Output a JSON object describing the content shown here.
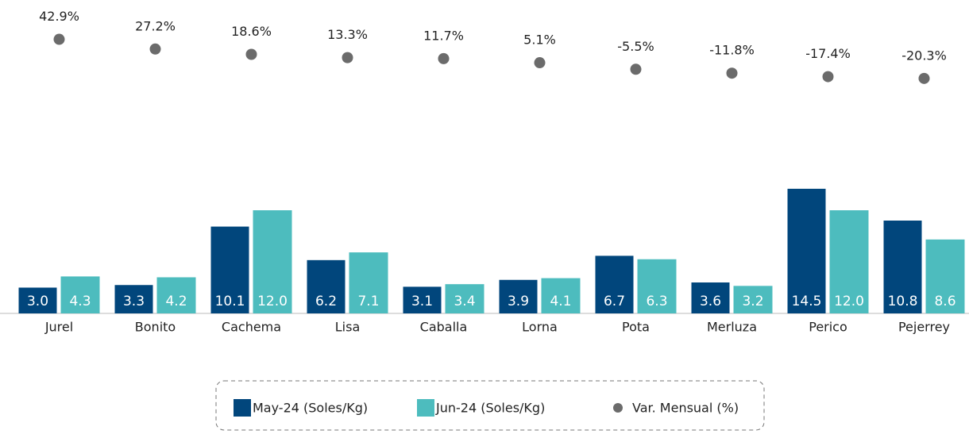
{
  "chart_data": {
    "type": "bar",
    "categories": [
      "Jurel",
      "Bonito",
      "Cachema",
      "Lisa",
      "Caballa",
      "Lorna",
      "Pota",
      "Merluza",
      "Perico",
      "Pejerrey"
    ],
    "series": [
      {
        "name": "May-24 (Soles/Kg)",
        "color": "#01467c",
        "values": [
          3.0,
          3.3,
          10.1,
          6.2,
          3.1,
          3.9,
          6.7,
          3.6,
          14.5,
          10.8
        ],
        "value_labels": [
          "3.0",
          "3.3",
          "10.1",
          "6.2",
          "3.1",
          "3.9",
          "6.7",
          "3.6",
          "14.5",
          "10.8"
        ]
      },
      {
        "name": "Jun-24 (Soles/Kg)",
        "color": "#4dbcbe",
        "values": [
          4.3,
          4.2,
          12.0,
          7.1,
          3.4,
          4.1,
          6.3,
          3.2,
          12.0,
          8.6
        ],
        "value_labels": [
          "4.3",
          "4.2",
          "12.0",
          "7.1",
          "3.4",
          "4.1",
          "6.3",
          "3.2",
          "12.0",
          "8.6"
        ]
      },
      {
        "name": "Var. Mensual (%)",
        "color": "#6b6b6b",
        "axis": "y2",
        "type": "scatter",
        "values": [
          42.9,
          27.2,
          18.6,
          13.3,
          11.7,
          5.1,
          -5.5,
          -11.8,
          -17.4,
          -20.3
        ],
        "value_labels": [
          "42.9%",
          "27.2%",
          "18.6%",
          "13.3%",
          "11.7%",
          "5.1%",
          "-5.5%",
          "-11.8%",
          "-17.4%",
          "-20.3%"
        ]
      }
    ],
    "ylim": [
      0,
      36
    ],
    "y2lim": [
      -400,
      100
    ],
    "legend": "bottom"
  }
}
